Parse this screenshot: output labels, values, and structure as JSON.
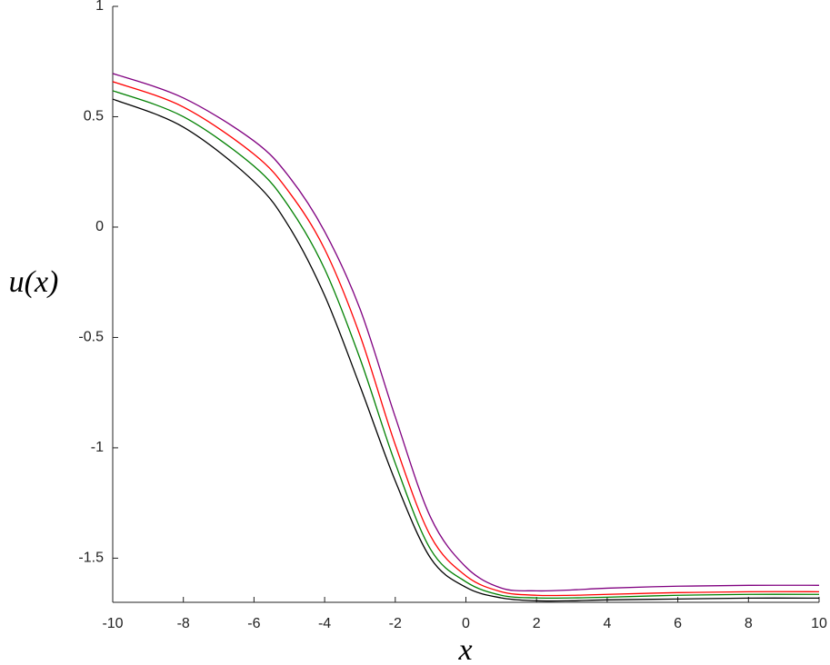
{
  "chart_data": {
    "type": "line",
    "xlabel": "x",
    "ylabel": "u(x)",
    "x": [
      -10,
      -8,
      -6,
      -5,
      -4,
      -3,
      -2,
      -1,
      0,
      1,
      2,
      3,
      4,
      6,
      8,
      10
    ],
    "series": [
      {
        "color": "#800080",
        "values": [
          0.696,
          0.585,
          0.39,
          0.227,
          -0.02,
          -0.37,
          -0.86,
          -1.315,
          -1.54,
          -1.635,
          -1.648,
          -1.644,
          -1.636,
          -1.627,
          -1.623,
          -1.623
        ]
      },
      {
        "color": "#ff0000",
        "values": [
          0.659,
          0.544,
          0.33,
          0.157,
          -0.1,
          -0.49,
          -0.986,
          -1.4,
          -1.58,
          -1.652,
          -1.668,
          -1.668,
          -1.664,
          -1.656,
          -1.652,
          -1.652
        ]
      },
      {
        "color": "#008000",
        "values": [
          0.618,
          0.5,
          0.276,
          0.09,
          -0.19,
          -0.595,
          -1.07,
          -1.46,
          -1.607,
          -1.668,
          -1.68,
          -1.68,
          -1.677,
          -1.668,
          -1.664,
          -1.664
        ]
      },
      {
        "color": "#000000",
        "values": [
          0.58,
          0.453,
          0.206,
          0,
          -0.31,
          -0.72,
          -1.15,
          -1.5,
          -1.632,
          -1.68,
          -1.693,
          -1.693,
          -1.689,
          -1.685,
          -1.681,
          -1.681
        ]
      }
    ],
    "xlim": [
      -10,
      10
    ],
    "xticks": [
      -10,
      -8,
      -6,
      -4,
      -2,
      0,
      2,
      4,
      6,
      8,
      10
    ],
    "ylim": [
      -1.7,
      1
    ],
    "yticks": [
      1,
      0.5,
      0,
      -0.5,
      -1,
      -1.5
    ]
  }
}
